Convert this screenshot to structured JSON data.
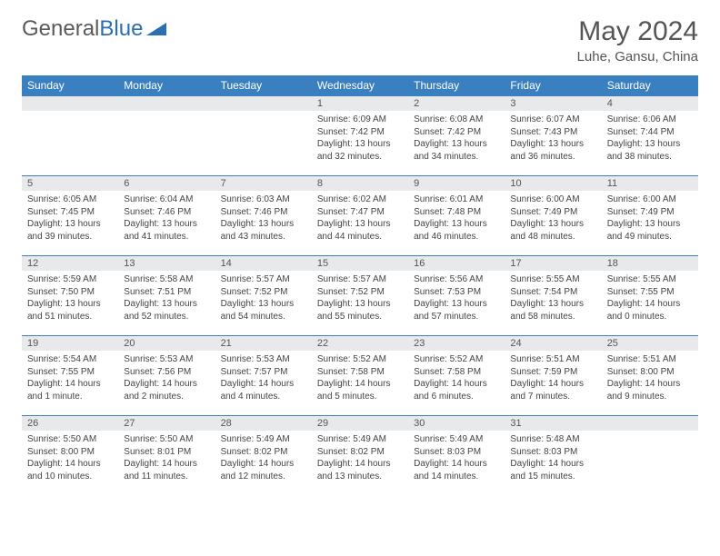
{
  "logo": {
    "text1": "General",
    "text2": "Blue"
  },
  "title": "May 2024",
  "location": "Luhe, Gansu, China",
  "colors": {
    "header_bg": "#3a7fbf",
    "header_text": "#ffffff",
    "daynum_bg": "#e8e9ea",
    "border": "#3a7fbf",
    "text": "#444444",
    "logo_gray": "#5a5a5a",
    "logo_blue": "#2b6fb3"
  },
  "weekdays": [
    "Sunday",
    "Monday",
    "Tuesday",
    "Wednesday",
    "Thursday",
    "Friday",
    "Saturday"
  ],
  "weeks": [
    [
      {
        "num": "",
        "sr": "",
        "ss": "",
        "dl": ""
      },
      {
        "num": "",
        "sr": "",
        "ss": "",
        "dl": ""
      },
      {
        "num": "",
        "sr": "",
        "ss": "",
        "dl": ""
      },
      {
        "num": "1",
        "sr": "Sunrise: 6:09 AM",
        "ss": "Sunset: 7:42 PM",
        "dl": "Daylight: 13 hours and 32 minutes."
      },
      {
        "num": "2",
        "sr": "Sunrise: 6:08 AM",
        "ss": "Sunset: 7:42 PM",
        "dl": "Daylight: 13 hours and 34 minutes."
      },
      {
        "num": "3",
        "sr": "Sunrise: 6:07 AM",
        "ss": "Sunset: 7:43 PM",
        "dl": "Daylight: 13 hours and 36 minutes."
      },
      {
        "num": "4",
        "sr": "Sunrise: 6:06 AM",
        "ss": "Sunset: 7:44 PM",
        "dl": "Daylight: 13 hours and 38 minutes."
      }
    ],
    [
      {
        "num": "5",
        "sr": "Sunrise: 6:05 AM",
        "ss": "Sunset: 7:45 PM",
        "dl": "Daylight: 13 hours and 39 minutes."
      },
      {
        "num": "6",
        "sr": "Sunrise: 6:04 AM",
        "ss": "Sunset: 7:46 PM",
        "dl": "Daylight: 13 hours and 41 minutes."
      },
      {
        "num": "7",
        "sr": "Sunrise: 6:03 AM",
        "ss": "Sunset: 7:46 PM",
        "dl": "Daylight: 13 hours and 43 minutes."
      },
      {
        "num": "8",
        "sr": "Sunrise: 6:02 AM",
        "ss": "Sunset: 7:47 PM",
        "dl": "Daylight: 13 hours and 44 minutes."
      },
      {
        "num": "9",
        "sr": "Sunrise: 6:01 AM",
        "ss": "Sunset: 7:48 PM",
        "dl": "Daylight: 13 hours and 46 minutes."
      },
      {
        "num": "10",
        "sr": "Sunrise: 6:00 AM",
        "ss": "Sunset: 7:49 PM",
        "dl": "Daylight: 13 hours and 48 minutes."
      },
      {
        "num": "11",
        "sr": "Sunrise: 6:00 AM",
        "ss": "Sunset: 7:49 PM",
        "dl": "Daylight: 13 hours and 49 minutes."
      }
    ],
    [
      {
        "num": "12",
        "sr": "Sunrise: 5:59 AM",
        "ss": "Sunset: 7:50 PM",
        "dl": "Daylight: 13 hours and 51 minutes."
      },
      {
        "num": "13",
        "sr": "Sunrise: 5:58 AM",
        "ss": "Sunset: 7:51 PM",
        "dl": "Daylight: 13 hours and 52 minutes."
      },
      {
        "num": "14",
        "sr": "Sunrise: 5:57 AM",
        "ss": "Sunset: 7:52 PM",
        "dl": "Daylight: 13 hours and 54 minutes."
      },
      {
        "num": "15",
        "sr": "Sunrise: 5:57 AM",
        "ss": "Sunset: 7:52 PM",
        "dl": "Daylight: 13 hours and 55 minutes."
      },
      {
        "num": "16",
        "sr": "Sunrise: 5:56 AM",
        "ss": "Sunset: 7:53 PM",
        "dl": "Daylight: 13 hours and 57 minutes."
      },
      {
        "num": "17",
        "sr": "Sunrise: 5:55 AM",
        "ss": "Sunset: 7:54 PM",
        "dl": "Daylight: 13 hours and 58 minutes."
      },
      {
        "num": "18",
        "sr": "Sunrise: 5:55 AM",
        "ss": "Sunset: 7:55 PM",
        "dl": "Daylight: 14 hours and 0 minutes."
      }
    ],
    [
      {
        "num": "19",
        "sr": "Sunrise: 5:54 AM",
        "ss": "Sunset: 7:55 PM",
        "dl": "Daylight: 14 hours and 1 minute."
      },
      {
        "num": "20",
        "sr": "Sunrise: 5:53 AM",
        "ss": "Sunset: 7:56 PM",
        "dl": "Daylight: 14 hours and 2 minutes."
      },
      {
        "num": "21",
        "sr": "Sunrise: 5:53 AM",
        "ss": "Sunset: 7:57 PM",
        "dl": "Daylight: 14 hours and 4 minutes."
      },
      {
        "num": "22",
        "sr": "Sunrise: 5:52 AM",
        "ss": "Sunset: 7:58 PM",
        "dl": "Daylight: 14 hours and 5 minutes."
      },
      {
        "num": "23",
        "sr": "Sunrise: 5:52 AM",
        "ss": "Sunset: 7:58 PM",
        "dl": "Daylight: 14 hours and 6 minutes."
      },
      {
        "num": "24",
        "sr": "Sunrise: 5:51 AM",
        "ss": "Sunset: 7:59 PM",
        "dl": "Daylight: 14 hours and 7 minutes."
      },
      {
        "num": "25",
        "sr": "Sunrise: 5:51 AM",
        "ss": "Sunset: 8:00 PM",
        "dl": "Daylight: 14 hours and 9 minutes."
      }
    ],
    [
      {
        "num": "26",
        "sr": "Sunrise: 5:50 AM",
        "ss": "Sunset: 8:00 PM",
        "dl": "Daylight: 14 hours and 10 minutes."
      },
      {
        "num": "27",
        "sr": "Sunrise: 5:50 AM",
        "ss": "Sunset: 8:01 PM",
        "dl": "Daylight: 14 hours and 11 minutes."
      },
      {
        "num": "28",
        "sr": "Sunrise: 5:49 AM",
        "ss": "Sunset: 8:02 PM",
        "dl": "Daylight: 14 hours and 12 minutes."
      },
      {
        "num": "29",
        "sr": "Sunrise: 5:49 AM",
        "ss": "Sunset: 8:02 PM",
        "dl": "Daylight: 14 hours and 13 minutes."
      },
      {
        "num": "30",
        "sr": "Sunrise: 5:49 AM",
        "ss": "Sunset: 8:03 PM",
        "dl": "Daylight: 14 hours and 14 minutes."
      },
      {
        "num": "31",
        "sr": "Sunrise: 5:48 AM",
        "ss": "Sunset: 8:03 PM",
        "dl": "Daylight: 14 hours and 15 minutes."
      },
      {
        "num": "",
        "sr": "",
        "ss": "",
        "dl": ""
      }
    ]
  ]
}
